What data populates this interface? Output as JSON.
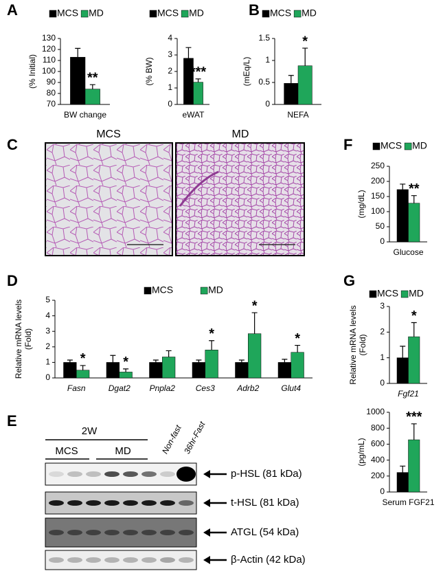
{
  "chart_data": [
    {
      "type": "bar",
      "categories": [
        "BW change"
      ],
      "ylabel": [
        "(% Initial)"
      ],
      "ylim": [
        70,
        130
      ],
      "yticks": [
        70,
        80,
        90,
        100,
        110,
        120,
        130
      ],
      "legend": true,
      "series": [
        {
          "name": "MCS",
          "color": "#000000",
          "values": [
            113
          ],
          "errors": [
            8
          ]
        },
        {
          "name": "MD",
          "color": "#1fa65a",
          "values": [
            84
          ],
          "errors": [
            4
          ],
          "significance": [
            "**"
          ]
        }
      ]
    },
    {
      "type": "bar",
      "categories": [
        "eWAT"
      ],
      "ylabel": [
        "(% BW)"
      ],
      "ylim": [
        0,
        4
      ],
      "yticks": [
        0,
        1,
        2,
        3,
        4
      ],
      "legend": true,
      "series": [
        {
          "name": "MCS",
          "color": "#000000",
          "values": [
            2.8
          ],
          "errors": [
            0.65
          ]
        },
        {
          "name": "MD",
          "color": "#1fa65a",
          "values": [
            1.35
          ],
          "errors": [
            0.2
          ],
          "significance": [
            "***"
          ]
        }
      ]
    },
    {
      "type": "bar",
      "categories": [
        "NEFA"
      ],
      "ylabel": [
        "(mEq/L)"
      ],
      "ylim": [
        0,
        1.5
      ],
      "yticks": [
        0,
        0.5,
        1,
        1.5
      ],
      "legend": true,
      "series": [
        {
          "name": "MCS",
          "color": "#000000",
          "values": [
            0.48
          ],
          "errors": [
            0.18
          ]
        },
        {
          "name": "MD",
          "color": "#1fa65a",
          "values": [
            0.88
          ],
          "errors": [
            0.4
          ],
          "significance": [
            "*"
          ]
        }
      ]
    },
    {
      "type": "bar",
      "categories": [
        "Glucose"
      ],
      "ylabel": [
        "(mg/dL)"
      ],
      "ylim": [
        0,
        250
      ],
      "yticks": [
        0,
        50,
        100,
        150,
        200,
        250
      ],
      "legend": true,
      "series": [
        {
          "name": "MCS",
          "color": "#000000",
          "values": [
            173
          ],
          "errors": [
            18
          ]
        },
        {
          "name": "MD",
          "color": "#1fa65a",
          "values": [
            128
          ],
          "errors": [
            25
          ],
          "significance": [
            "**"
          ]
        }
      ]
    },
    {
      "type": "bar",
      "categories": [
        "Fasn",
        "Dgat2",
        "Pnpla2",
        "Ces3",
        "Adrb2",
        "Glut4"
      ],
      "italic_categories": true,
      "ylabel": [
        "Relative mRNA levels",
        "(Fold)"
      ],
      "ylim": [
        0,
        5
      ],
      "yticks": [
        0,
        1,
        2,
        3,
        4,
        5
      ],
      "legend": true,
      "series": [
        {
          "name": "MCS",
          "color": "#000000",
          "values": [
            1,
            1,
            1,
            1,
            1,
            1
          ],
          "errors": [
            0.15,
            0.45,
            0.15,
            0.15,
            0.15,
            0.2
          ]
        },
        {
          "name": "MD",
          "color": "#1fa65a",
          "values": [
            0.5,
            0.38,
            1.35,
            1.8,
            2.85,
            1.65
          ],
          "errors": [
            0.3,
            0.2,
            0.4,
            0.6,
            1.35,
            0.45
          ],
          "significance": [
            "*",
            "*",
            null,
            "*",
            "*",
            "*"
          ]
        }
      ]
    },
    {
      "type": "bar",
      "categories": [
        "Fgf21"
      ],
      "italic_categories": true,
      "ylabel": [
        "Relative mRNA levels",
        "(Fold)"
      ],
      "ylim": [
        0,
        3
      ],
      "yticks": [
        0,
        1,
        2,
        3
      ],
      "legend": true,
      "series": [
        {
          "name": "MCS",
          "color": "#000000",
          "values": [
            1
          ],
          "errors": [
            0.45
          ]
        },
        {
          "name": "MD",
          "color": "#1fa65a",
          "values": [
            1.82
          ],
          "errors": [
            0.55
          ],
          "significance": [
            "*"
          ]
        }
      ]
    },
    {
      "type": "bar",
      "categories": [
        "Serum FGF21"
      ],
      "ylabel": [
        "(pg/mL)"
      ],
      "ylim": [
        0,
        1000
      ],
      "yticks": [
        0,
        200,
        400,
        600,
        800,
        1000
      ],
      "legend": false,
      "series": [
        {
          "name": "MCS",
          "color": "#000000",
          "values": [
            245
          ],
          "errors": [
            80
          ]
        },
        {
          "name": "MD",
          "color": "#1fa65a",
          "values": [
            655
          ],
          "errors": [
            200
          ],
          "significance": [
            "***"
          ]
        }
      ]
    }
  ],
  "panel_labels": [
    "A",
    "B",
    "C",
    "D",
    "E",
    "F",
    "G"
  ],
  "histology": {
    "titles": [
      "MCS",
      "MD"
    ]
  },
  "blot": {
    "group": "2W",
    "lanes": [
      "MCS",
      "MD",
      "Non-fast",
      "36hr-Fast"
    ],
    "bands": [
      "p-HSL (81 kDa)",
      "t-HSL (81 kDa)",
      "ATGL (54 kDa)",
      "β-Actin (42 kDa)"
    ]
  }
}
